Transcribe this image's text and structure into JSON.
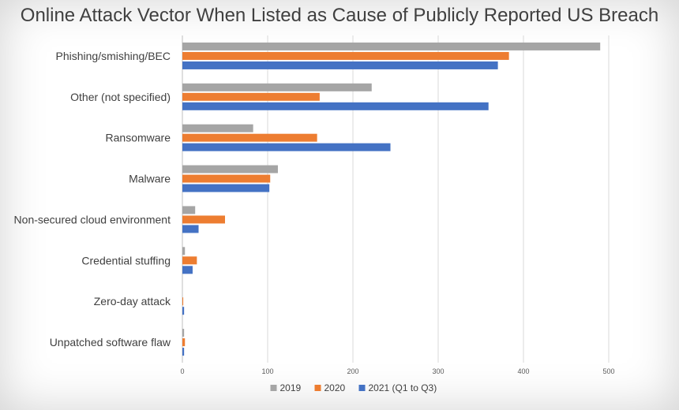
{
  "chart_data": {
    "type": "bar",
    "orientation": "horizontal",
    "title": "Online Attack Vector When Listed as Cause of Publicly Reported US Breach",
    "categories": [
      "Phishing/smishing/BEC",
      "Other (not specified)",
      "Ransomware",
      "Malware",
      "Non-secured cloud environment",
      "Credential stuffing",
      "Zero-day attack",
      "Unpatched software flaw"
    ],
    "series": [
      {
        "name": "2019",
        "color": "#a5a5a5",
        "values": [
          490,
          222,
          83,
          112,
          15,
          3,
          0,
          2
        ]
      },
      {
        "name": "2020",
        "color": "#ed7d31",
        "values": [
          383,
          161,
          158,
          103,
          50,
          17,
          1,
          3
        ]
      },
      {
        "name": "2021 (Q1 to Q3)",
        "color": "#4472c4",
        "values": [
          370,
          359,
          244,
          102,
          19,
          12,
          2,
          2
        ]
      }
    ],
    "xlim": [
      0,
      500
    ],
    "xticks": [
      0,
      100,
      200,
      300,
      400,
      500
    ],
    "grid": true,
    "legend": "bottom"
  }
}
